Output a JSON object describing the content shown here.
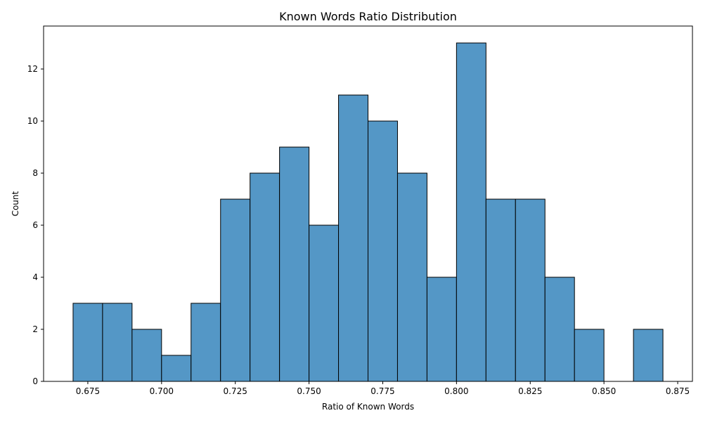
{
  "chart_data": {
    "type": "bar",
    "title": "Known Words Ratio Distribution",
    "xlabel": "Ratio of Known Words",
    "ylabel": "Count",
    "bin_edges": [
      0.67,
      0.68,
      0.69,
      0.7,
      0.71,
      0.72,
      0.73,
      0.74,
      0.75,
      0.76,
      0.77,
      0.78,
      0.79,
      0.8,
      0.81,
      0.82,
      0.83,
      0.84,
      0.85,
      0.86,
      0.87
    ],
    "values": [
      3,
      3,
      2,
      1,
      3,
      7,
      8,
      9,
      6,
      11,
      10,
      8,
      4,
      13,
      7,
      7,
      4,
      2,
      0,
      2
    ],
    "xlim": [
      0.66,
      0.88
    ],
    "ylim": [
      0,
      13.65
    ],
    "xticks": [
      "0.675",
      "0.700",
      "0.725",
      "0.750",
      "0.775",
      "0.800",
      "0.825",
      "0.850",
      "0.875"
    ],
    "yticks": [
      "0",
      "2",
      "4",
      "6",
      "8",
      "10",
      "12"
    ],
    "bar_color": "#5497c6",
    "edge_color": "#000000",
    "grid": false,
    "legend": "none"
  }
}
